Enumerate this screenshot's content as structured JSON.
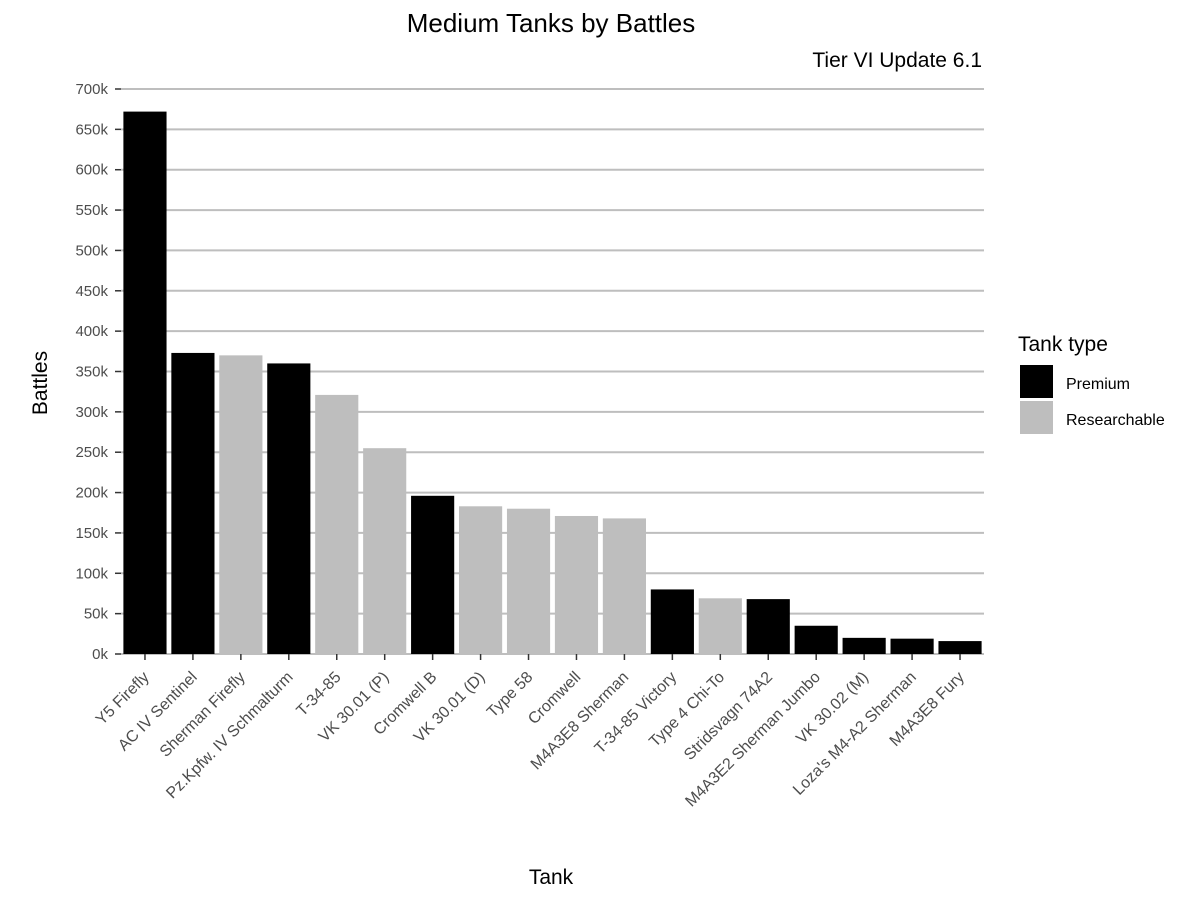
{
  "chart_data": {
    "type": "bar",
    "title": "Medium Tanks by Battles",
    "subtitle": "Tier VI Update 6.1",
    "xlabel": "Tank",
    "ylabel": "Battles",
    "ylim": [
      0,
      700000
    ],
    "y_ticks": [
      0,
      50000,
      100000,
      150000,
      200000,
      250000,
      300000,
      350000,
      400000,
      450000,
      500000,
      550000,
      600000,
      650000,
      700000
    ],
    "y_tick_labels": [
      "0k",
      "50k",
      "100k",
      "150k",
      "200k",
      "250k",
      "300k",
      "350k",
      "400k",
      "450k",
      "500k",
      "550k",
      "600k",
      "650k",
      "700k"
    ],
    "grid": "horizontal",
    "legend": {
      "title": "Tank type",
      "placement": "right",
      "entries": [
        {
          "name": "Premium",
          "color": "#000000"
        },
        {
          "name": "Researchable",
          "color": "#bebebe"
        }
      ]
    },
    "categories": [
      "Y5 Firefly",
      "AC IV Sentinel",
      "Sherman Firefly",
      "Pz.Kpfw. IV Schmalturm",
      "T-34-85",
      "VK 30.01 (P)",
      "Cromwell B",
      "VK 30.01 (D)",
      "Type 58",
      "Cromwell",
      "M4A3E8 Sherman",
      "T-34-85 Victory",
      "Type 4 Chi-To",
      "Stridsvagn 74A2",
      "M4A3E2 Sherman Jumbo",
      "VK 30.02 (M)",
      "Loza's M4-A2 Sherman",
      "M4A3E8 Fury"
    ],
    "values": [
      672000,
      373000,
      370000,
      360000,
      321000,
      255000,
      196000,
      183000,
      180000,
      171000,
      168000,
      80000,
      69000,
      68000,
      35000,
      20000,
      19000,
      16000
    ],
    "types": [
      "Premium",
      "Premium",
      "Researchable",
      "Premium",
      "Researchable",
      "Researchable",
      "Premium",
      "Researchable",
      "Researchable",
      "Researchable",
      "Researchable",
      "Premium",
      "Researchable",
      "Premium",
      "Premium",
      "Premium",
      "Premium",
      "Premium"
    ]
  }
}
